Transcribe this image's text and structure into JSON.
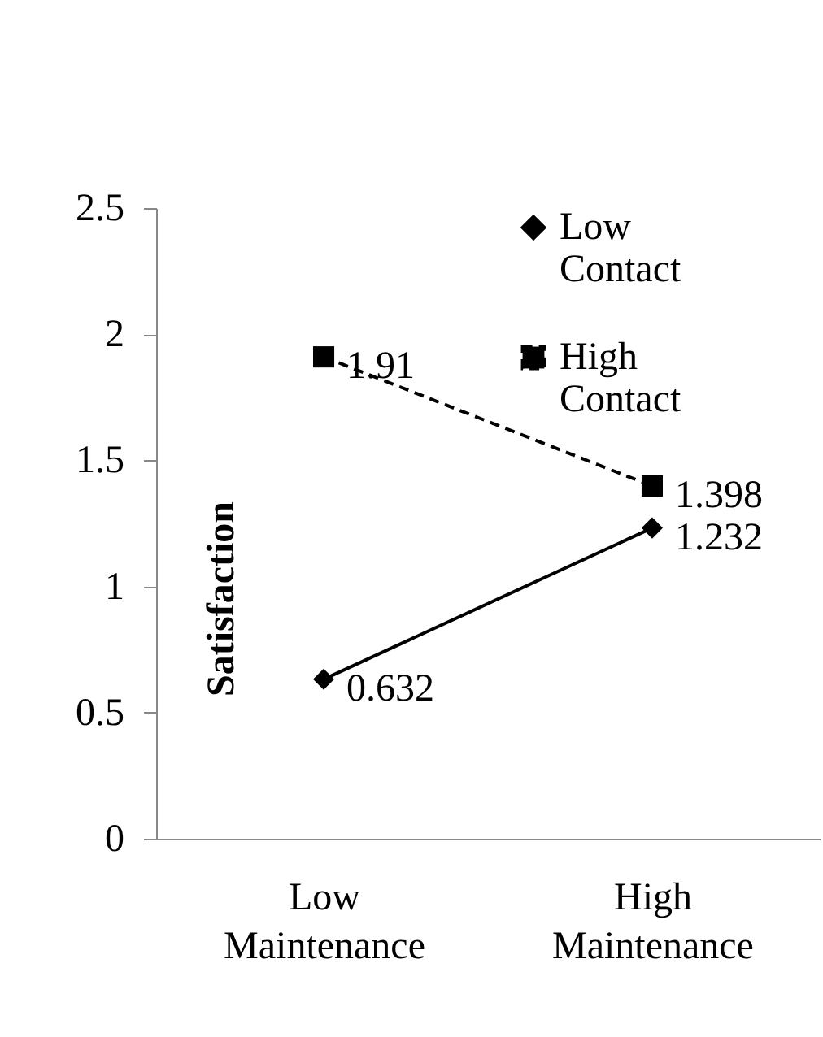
{
  "chart_data": {
    "type": "line",
    "ylabel": "Satisfaction",
    "categories": [
      "Low Maintenance",
      "High Maintenance"
    ],
    "series": [
      {
        "name": "Low Contact",
        "color": "#000000",
        "values": [
          0.632,
          1.232
        ],
        "marker": "diamond",
        "line_style": "solid"
      },
      {
        "name": "High Contact",
        "color": "#000000",
        "values": [
          1.91,
          1.398
        ],
        "marker": "square",
        "line_style": "dashed"
      }
    ],
    "ylim": [
      0,
      2.5
    ],
    "yticks": [
      0,
      0.5,
      1,
      1.5,
      2,
      2.5
    ],
    "grid": false,
    "legend": "top right",
    "data_labels": true
  }
}
